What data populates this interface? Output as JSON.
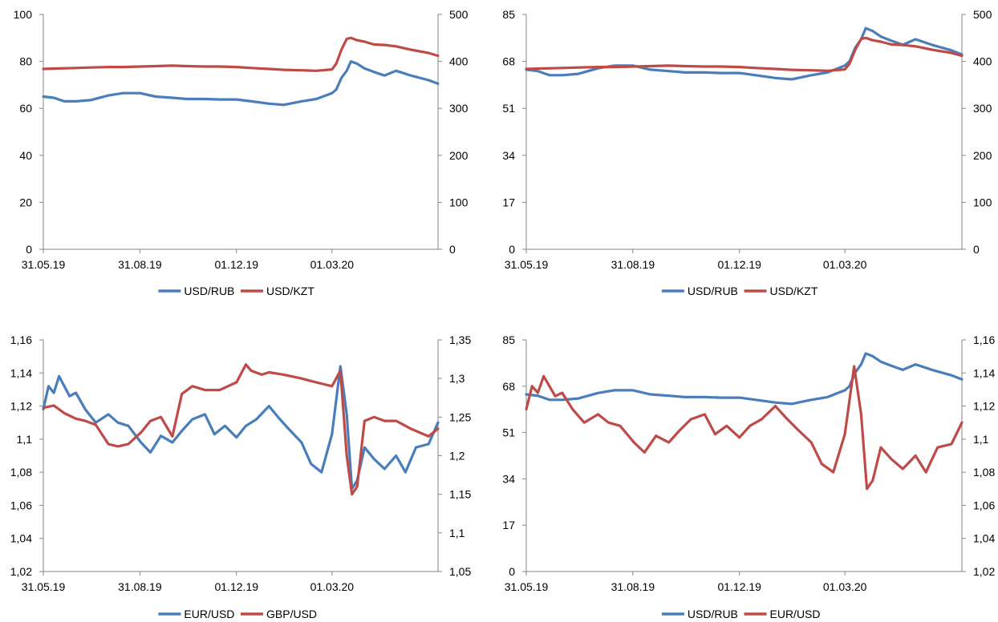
{
  "colors": {
    "blue": "#4a7ebb",
    "red": "#be4b48",
    "axis": "#868686"
  },
  "chart_data": [
    {
      "type": "line",
      "x_ticks": [
        "31.05.19",
        "31.08.19",
        "01.12.19",
        "01.03.20"
      ],
      "x_range": [
        "2019-05-31",
        "2020-06-10"
      ],
      "y_left": {
        "min": 0,
        "max": 100,
        "ticks": [
          "0",
          "20",
          "40",
          "60",
          "80",
          "100"
        ]
      },
      "y_right": {
        "min": 0,
        "max": 500,
        "ticks": [
          "0",
          "100",
          "200",
          "300",
          "400",
          "500"
        ]
      },
      "legend_position": "bottom",
      "series": [
        {
          "name": "USD/RUB",
          "axis": "left",
          "color": "#4a7ebb",
          "x": [
            "2019-05-31",
            "2019-06-10",
            "2019-06-20",
            "2019-07-01",
            "2019-07-15",
            "2019-08-01",
            "2019-08-15",
            "2019-08-31",
            "2019-09-15",
            "2019-10-01",
            "2019-10-15",
            "2019-11-01",
            "2019-11-15",
            "2019-12-01",
            "2019-12-15",
            "2020-01-01",
            "2020-01-15",
            "2020-02-01",
            "2020-02-15",
            "2020-03-01",
            "2020-03-05",
            "2020-03-10",
            "2020-03-15",
            "2020-03-19",
            "2020-03-25",
            "2020-04-01",
            "2020-04-10",
            "2020-04-20",
            "2020-05-01",
            "2020-05-15",
            "2020-06-01",
            "2020-06-10"
          ],
          "values": [
            65,
            64.5,
            63,
            63,
            63.5,
            65.5,
            66.5,
            66.5,
            65,
            64.5,
            64,
            64,
            63.8,
            63.8,
            63,
            62,
            61.5,
            63,
            64,
            66.5,
            68,
            73,
            76,
            80,
            79,
            77,
            75.5,
            74,
            76,
            74,
            72,
            70.5
          ]
        },
        {
          "name": "USD/KZT",
          "axis": "right",
          "color": "#be4b48",
          "x": [
            "2019-05-31",
            "2019-06-15",
            "2019-07-01",
            "2019-07-15",
            "2019-08-01",
            "2019-08-15",
            "2019-09-01",
            "2019-09-15",
            "2019-10-01",
            "2019-10-15",
            "2019-11-01",
            "2019-11-15",
            "2019-12-01",
            "2019-12-15",
            "2020-01-01",
            "2020-01-15",
            "2020-02-01",
            "2020-02-15",
            "2020-03-01",
            "2020-03-05",
            "2020-03-10",
            "2020-03-15",
            "2020-03-19",
            "2020-03-25",
            "2020-04-01",
            "2020-04-10",
            "2020-04-20",
            "2020-05-01",
            "2020-05-15",
            "2020-06-01",
            "2020-06-10"
          ],
          "values": [
            384,
            385,
            386,
            387,
            388,
            388,
            389,
            390,
            391,
            390,
            389,
            389,
            388,
            386,
            384,
            382,
            381,
            380,
            383,
            395,
            425,
            448,
            450,
            445,
            442,
            436,
            435,
            432,
            425,
            418,
            412
          ]
        }
      ]
    },
    {
      "type": "line",
      "x_ticks": [
        "31.05.19",
        "31.08.19",
        "01.12.19",
        "01.03.20"
      ],
      "x_range": [
        "2019-05-31",
        "2020-06-10"
      ],
      "y_left": {
        "min": 0,
        "max": 85,
        "ticks": [
          "0",
          "17",
          "34",
          "51",
          "68",
          "85"
        ]
      },
      "y_right": {
        "min": 0,
        "max": 500,
        "ticks": [
          "0",
          "100",
          "200",
          "300",
          "400",
          "500"
        ]
      },
      "legend_position": "bottom",
      "series": [
        {
          "name": "USD/RUB",
          "axis": "left",
          "color": "#4a7ebb",
          "x": [
            "2019-05-31",
            "2019-06-10",
            "2019-06-20",
            "2019-07-01",
            "2019-07-15",
            "2019-08-01",
            "2019-08-15",
            "2019-08-31",
            "2019-09-15",
            "2019-10-01",
            "2019-10-15",
            "2019-11-01",
            "2019-11-15",
            "2019-12-01",
            "2019-12-15",
            "2020-01-01",
            "2020-01-15",
            "2020-02-01",
            "2020-02-15",
            "2020-03-01",
            "2020-03-05",
            "2020-03-10",
            "2020-03-15",
            "2020-03-19",
            "2020-03-25",
            "2020-04-01",
            "2020-04-10",
            "2020-04-20",
            "2020-05-01",
            "2020-05-15",
            "2020-06-01",
            "2020-06-10"
          ],
          "values": [
            65,
            64.5,
            63,
            63,
            63.5,
            65.5,
            66.5,
            66.5,
            65,
            64.5,
            64,
            64,
            63.8,
            63.8,
            63,
            62,
            61.5,
            63,
            64,
            66.5,
            68,
            73,
            76,
            80,
            79,
            77,
            75.5,
            74,
            76,
            74,
            72,
            70.5
          ]
        },
        {
          "name": "USD/KZT",
          "axis": "right",
          "color": "#be4b48",
          "x": [
            "2019-05-31",
            "2019-06-15",
            "2019-07-01",
            "2019-07-15",
            "2019-08-01",
            "2019-08-15",
            "2019-09-01",
            "2019-09-15",
            "2019-10-01",
            "2019-10-15",
            "2019-11-01",
            "2019-11-15",
            "2019-12-01",
            "2019-12-15",
            "2020-01-01",
            "2020-01-15",
            "2020-02-01",
            "2020-02-15",
            "2020-03-01",
            "2020-03-05",
            "2020-03-10",
            "2020-03-15",
            "2020-03-19",
            "2020-03-25",
            "2020-04-01",
            "2020-04-10",
            "2020-04-20",
            "2020-05-01",
            "2020-05-15",
            "2020-06-01",
            "2020-06-10"
          ],
          "values": [
            384,
            385,
            386,
            387,
            388,
            388,
            389,
            390,
            391,
            390,
            389,
            389,
            388,
            386,
            384,
            382,
            381,
            380,
            383,
            395,
            425,
            448,
            450,
            445,
            442,
            436,
            435,
            432,
            425,
            418,
            412
          ]
        }
      ]
    },
    {
      "type": "line",
      "x_ticks": [
        "31.05.19",
        "31.08.19",
        "01.12.19",
        "01.03.20"
      ],
      "x_range": [
        "2019-05-31",
        "2020-06-10"
      ],
      "y_left": {
        "min": 1.02,
        "max": 1.16,
        "ticks": [
          "1,02",
          "1,04",
          "1,06",
          "1,08",
          "1,1",
          "1,12",
          "1,14",
          "1,16"
        ]
      },
      "y_right": {
        "min": 1.05,
        "max": 1.35,
        "ticks": [
          "1,05",
          "1,1",
          "1,15",
          "1,2",
          "1,25",
          "1,3",
          "1,35"
        ]
      },
      "legend_position": "bottom",
      "series": [
        {
          "name": "EUR/USD",
          "axis": "left",
          "color": "#4a7ebb",
          "x": [
            "2019-05-31",
            "2019-06-05",
            "2019-06-10",
            "2019-06-15",
            "2019-06-25",
            "2019-07-01",
            "2019-07-10",
            "2019-07-20",
            "2019-08-01",
            "2019-08-10",
            "2019-08-20",
            "2019-09-01",
            "2019-09-10",
            "2019-09-20",
            "2019-10-01",
            "2019-10-10",
            "2019-10-20",
            "2019-11-01",
            "2019-11-10",
            "2019-11-20",
            "2019-12-01",
            "2019-12-10",
            "2019-12-20",
            "2020-01-01",
            "2020-01-10",
            "2020-01-20",
            "2020-02-01",
            "2020-02-10",
            "2020-02-20",
            "2020-03-01",
            "2020-03-09",
            "2020-03-15",
            "2020-03-20",
            "2020-03-25",
            "2020-04-01",
            "2020-04-10",
            "2020-04-20",
            "2020-05-01",
            "2020-05-10",
            "2020-05-20",
            "2020-06-01",
            "2020-06-10"
          ],
          "values": [
            1.118,
            1.132,
            1.128,
            1.138,
            1.126,
            1.128,
            1.118,
            1.11,
            1.115,
            1.11,
            1.108,
            1.098,
            1.092,
            1.102,
            1.098,
            1.105,
            1.112,
            1.115,
            1.103,
            1.108,
            1.101,
            1.108,
            1.112,
            1.12,
            1.113,
            1.106,
            1.098,
            1.085,
            1.08,
            1.103,
            1.144,
            1.115,
            1.07,
            1.075,
            1.095,
            1.088,
            1.082,
            1.09,
            1.08,
            1.095,
            1.097,
            1.11
          ]
        },
        {
          "name": "GBP/USD",
          "axis": "right",
          "color": "#be4b48",
          "x": [
            "2019-05-31",
            "2019-06-10",
            "2019-06-20",
            "2019-07-01",
            "2019-07-10",
            "2019-07-20",
            "2019-08-01",
            "2019-08-10",
            "2019-08-20",
            "2019-09-01",
            "2019-09-10",
            "2019-09-20",
            "2019-10-01",
            "2019-10-10",
            "2019-10-20",
            "2019-11-01",
            "2019-11-15",
            "2019-12-01",
            "2019-12-10",
            "2019-12-15",
            "2019-12-25",
            "2020-01-01",
            "2020-01-15",
            "2020-02-01",
            "2020-02-15",
            "2020-03-01",
            "2020-03-09",
            "2020-03-15",
            "2020-03-20",
            "2020-03-25",
            "2020-04-01",
            "2020-04-10",
            "2020-04-20",
            "2020-05-01",
            "2020-05-15",
            "2020-06-01",
            "2020-06-10"
          ],
          "values": [
            1.262,
            1.265,
            1.255,
            1.248,
            1.245,
            1.24,
            1.215,
            1.212,
            1.215,
            1.23,
            1.245,
            1.25,
            1.225,
            1.28,
            1.29,
            1.285,
            1.285,
            1.295,
            1.318,
            1.31,
            1.305,
            1.308,
            1.305,
            1.3,
            1.295,
            1.29,
            1.31,
            1.2,
            1.15,
            1.16,
            1.245,
            1.25,
            1.245,
            1.245,
            1.235,
            1.225,
            1.235
          ]
        }
      ]
    },
    {
      "type": "line",
      "x_ticks": [
        "31.05.19",
        "31.08.19",
        "01.12.19",
        "01.03.20"
      ],
      "x_range": [
        "2019-05-31",
        "2020-06-10"
      ],
      "y_left": {
        "min": 0,
        "max": 85,
        "ticks": [
          "0",
          "17",
          "34",
          "51",
          "68",
          "85"
        ]
      },
      "y_right": {
        "min": 1.02,
        "max": 1.16,
        "ticks": [
          "1,02",
          "1,04",
          "1,06",
          "1,08",
          "1,1",
          "1,12",
          "1,14",
          "1,16"
        ]
      },
      "legend_position": "bottom",
      "series": [
        {
          "name": "USD/RUB",
          "axis": "left",
          "color": "#4a7ebb",
          "x": [
            "2019-05-31",
            "2019-06-10",
            "2019-06-20",
            "2019-07-01",
            "2019-07-15",
            "2019-08-01",
            "2019-08-15",
            "2019-08-31",
            "2019-09-15",
            "2019-10-01",
            "2019-10-15",
            "2019-11-01",
            "2019-11-15",
            "2019-12-01",
            "2019-12-15",
            "2020-01-01",
            "2020-01-15",
            "2020-02-01",
            "2020-02-15",
            "2020-03-01",
            "2020-03-05",
            "2020-03-10",
            "2020-03-15",
            "2020-03-19",
            "2020-03-25",
            "2020-04-01",
            "2020-04-10",
            "2020-04-20",
            "2020-05-01",
            "2020-05-15",
            "2020-06-01",
            "2020-06-10"
          ],
          "values": [
            65,
            64.5,
            63,
            63,
            63.5,
            65.5,
            66.5,
            66.5,
            65,
            64.5,
            64,
            64,
            63.8,
            63.8,
            63,
            62,
            61.5,
            63,
            64,
            66.5,
            68,
            73,
            76,
            80,
            79,
            77,
            75.5,
            74,
            76,
            74,
            72,
            70.5
          ]
        },
        {
          "name": "EUR/USD",
          "axis": "right",
          "color": "#be4b48",
          "x": [
            "2019-05-31",
            "2019-06-05",
            "2019-06-10",
            "2019-06-15",
            "2019-06-25",
            "2019-07-01",
            "2019-07-10",
            "2019-07-20",
            "2019-08-01",
            "2019-08-10",
            "2019-08-20",
            "2019-09-01",
            "2019-09-10",
            "2019-09-20",
            "2019-10-01",
            "2019-10-10",
            "2019-10-20",
            "2019-11-01",
            "2019-11-10",
            "2019-11-20",
            "2019-12-01",
            "2019-12-10",
            "2019-12-20",
            "2020-01-01",
            "2020-01-10",
            "2020-01-20",
            "2020-02-01",
            "2020-02-10",
            "2020-02-20",
            "2020-03-01",
            "2020-03-09",
            "2020-03-15",
            "2020-03-20",
            "2020-03-25",
            "2020-04-01",
            "2020-04-10",
            "2020-04-20",
            "2020-05-01",
            "2020-05-10",
            "2020-05-20",
            "2020-06-01",
            "2020-06-10"
          ],
          "values": [
            1.118,
            1.132,
            1.128,
            1.138,
            1.126,
            1.128,
            1.118,
            1.11,
            1.115,
            1.11,
            1.108,
            1.098,
            1.092,
            1.102,
            1.098,
            1.105,
            1.112,
            1.115,
            1.103,
            1.108,
            1.101,
            1.108,
            1.112,
            1.12,
            1.113,
            1.106,
            1.098,
            1.085,
            1.08,
            1.103,
            1.144,
            1.115,
            1.07,
            1.075,
            1.095,
            1.088,
            1.082,
            1.09,
            1.08,
            1.095,
            1.097,
            1.11
          ]
        }
      ]
    }
  ]
}
